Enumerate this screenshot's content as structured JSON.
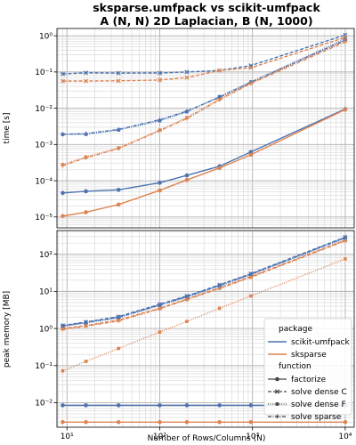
{
  "chart_data": {
    "title": "sksparse.umfpack vs scikit-umfpack",
    "subtitle": "A (N, N) 2D Laplacian, B (N, 1000)",
    "xlabel": "Number of Rows/Columns (N)",
    "x_scale": "log",
    "shared_x": true,
    "grid": "both major and minor",
    "colors": {
      "scikit-umfpack": "#4c72b0",
      "sksparse": "#dd8452"
    },
    "x": [
      9,
      16,
      36,
      100,
      196,
      441,
      961,
      10000
    ],
    "legend": {
      "placement": "lower right of bottom panel",
      "hue_title": "package",
      "hue_entries": [
        "scikit-umfpack",
        "sksparse"
      ],
      "style_title": "function",
      "style_entries": [
        "factorize",
        "solve dense C",
        "solve dense F",
        "solve sparse"
      ]
    },
    "panels": [
      {
        "type": "line",
        "ylabel": "time [s]",
        "y_scale": "log",
        "ylim_log10": [
          -5.3,
          0.2
        ],
        "xtick_labels": [],
        "ytick_labels": [
          "10⁻⁵",
          "10⁻⁴",
          "10⁻³",
          "10⁻²",
          "10⁻¹",
          "10⁰"
        ],
        "series": [
          {
            "package": "scikit-umfpack",
            "function": "factorize",
            "values": [
              4.6e-05,
              5.1e-05,
              5.6e-05,
              8.8e-05,
              0.00014,
              0.00025,
              0.00062,
              0.0095
            ]
          },
          {
            "package": "sksparse",
            "function": "factorize",
            "values": [
              1.06e-05,
              1.35e-05,
              2.2e-05,
              5.4e-05,
              0.000105,
              0.000225,
              0.00052,
              0.0092
            ]
          },
          {
            "package": "scikit-umfpack",
            "function": "solve dense C",
            "values": [
              0.088,
              0.095,
              0.093,
              0.094,
              0.1,
              0.11,
              0.15,
              1.05
            ]
          },
          {
            "package": "sksparse",
            "function": "solve dense C",
            "values": [
              0.056,
              0.056,
              0.057,
              0.06,
              0.07,
              0.11,
              0.13,
              0.9
            ]
          },
          {
            "package": "scikit-umfpack",
            "function": "solve dense F",
            "values": [
              0.0019,
              0.0019,
              0.0025,
              0.0045,
              0.008,
              0.021,
              0.053,
              0.82
            ]
          },
          {
            "package": "sksparse",
            "function": "solve dense F",
            "values": [
              0.00028,
              0.00045,
              0.0008,
              0.0025,
              0.0055,
              0.018,
              0.05,
              0.78
            ]
          },
          {
            "package": "scikit-umfpack",
            "function": "solve sparse",
            "values": [
              0.0019,
              0.002,
              0.0026,
              0.0048,
              0.0083,
              0.02,
              0.052,
              0.75
            ]
          },
          {
            "package": "sksparse",
            "function": "solve sparse",
            "values": [
              0.00026,
              0.00043,
              0.00077,
              0.0024,
              0.0052,
              0.017,
              0.048,
              0.68
            ]
          }
        ]
      },
      {
        "type": "line",
        "ylabel": "peak memory [MB]",
        "y_scale": "log",
        "ylim_log10": [
          -2.66,
          2.64
        ],
        "xtick_labels": [
          "10¹",
          "10²",
          "10³",
          "10⁴"
        ],
        "ytick_labels": [
          "10⁻²",
          "10⁻¹",
          "10⁰",
          "10¹",
          "10²"
        ],
        "series": [
          {
            "package": "scikit-umfpack",
            "function": "factorize",
            "values": [
              0.0085,
              0.0085,
              0.0085,
              0.0085,
              0.0085,
              0.0085,
              0.0085,
              0.0085
            ]
          },
          {
            "package": "sksparse",
            "function": "factorize",
            "values": [
              0.003,
              0.003,
              0.003,
              0.003,
              0.003,
              0.003,
              0.003,
              0.003
            ]
          },
          {
            "package": "scikit-umfpack",
            "function": "solve dense C",
            "values": [
              1.2,
              1.5,
              2.1,
              4.5,
              7.5,
              15,
              30,
              290
            ]
          },
          {
            "package": "sksparse",
            "function": "solve dense C",
            "values": [
              1.0,
              1.2,
              1.7,
              3.5,
              6.2,
              12.5,
              25,
              240
            ]
          },
          {
            "package": "scikit-umfpack",
            "function": "solve dense F",
            "values": [
              1.15,
              1.4,
              1.95,
              4.2,
              7.0,
              14,
              28,
              270
            ]
          },
          {
            "package": "sksparse",
            "function": "solve dense F",
            "values": [
              0.072,
              0.13,
              0.29,
              0.8,
              1.55,
              3.5,
              7.5,
              75
            ]
          },
          {
            "package": "scikit-umfpack",
            "function": "solve sparse",
            "values": [
              1.18,
              1.45,
              2.0,
              4.3,
              7.2,
              14.5,
              29,
              280
            ]
          },
          {
            "package": "sksparse",
            "function": "solve sparse",
            "values": [
              0.95,
              1.15,
              1.6,
              3.4,
              6.0,
              12,
              24,
              230
            ]
          }
        ]
      }
    ]
  }
}
